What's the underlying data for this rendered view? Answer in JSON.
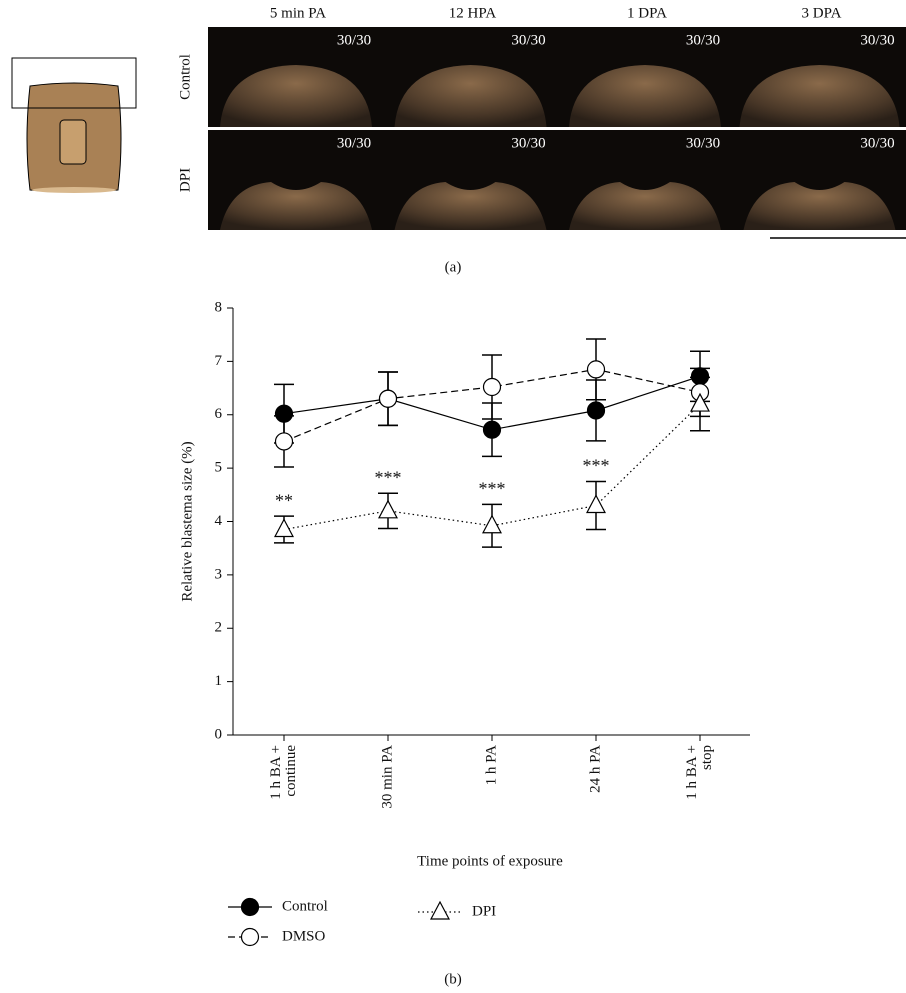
{
  "panel_a": {
    "columns": [
      "5 min PA",
      "12 HPA",
      "1 DPA",
      "3 DPA"
    ],
    "rows": [
      "Control",
      "DPI"
    ],
    "counts": [
      [
        "30/30",
        "30/30",
        "30/30",
        "30/30"
      ],
      [
        "30/30",
        "30/30",
        "30/30",
        "30/30"
      ]
    ],
    "label": "(a)"
  },
  "chart_data": {
    "type": "line",
    "y_label": "Relative blastema size (%)",
    "x_label": "Time points of exposure",
    "categories": [
      [
        "1 h BA +",
        "continue"
      ],
      [
        "30 min PA"
      ],
      [
        "1 h PA"
      ],
      [
        "24 h PA"
      ],
      [
        "1 h BA +",
        "stop"
      ]
    ],
    "ylim": [
      0,
      8
    ],
    "yticks": [
      0,
      1,
      2,
      3,
      4,
      5,
      6,
      7,
      8
    ],
    "series": [
      {
        "name": "Control",
        "color": "#000000",
        "marker": "circle",
        "filled": true,
        "linestyle": "solid",
        "values": [
          6.02,
          6.3,
          5.72,
          6.08,
          6.72
        ],
        "errors": [
          0.55,
          0.5,
          0.5,
          0.57,
          0.47
        ]
      },
      {
        "name": "DMSO",
        "color": "#000000",
        "marker": "circle",
        "filled": false,
        "linestyle": "dashed",
        "values": [
          5.5,
          6.3,
          6.52,
          6.85,
          6.42
        ],
        "errors": [
          0.48,
          0.5,
          0.6,
          0.57,
          0.45
        ]
      },
      {
        "name": "DPI",
        "color": "#000000",
        "marker": "triangle",
        "filled": false,
        "linestyle": "dotted",
        "values": [
          3.85,
          4.2,
          3.92,
          4.3,
          6.2
        ],
        "errors": [
          0.25,
          0.33,
          0.4,
          0.45,
          0.5
        ],
        "significance": [
          "**",
          "***",
          "***",
          "***",
          null
        ]
      }
    ],
    "label": "(b)"
  }
}
